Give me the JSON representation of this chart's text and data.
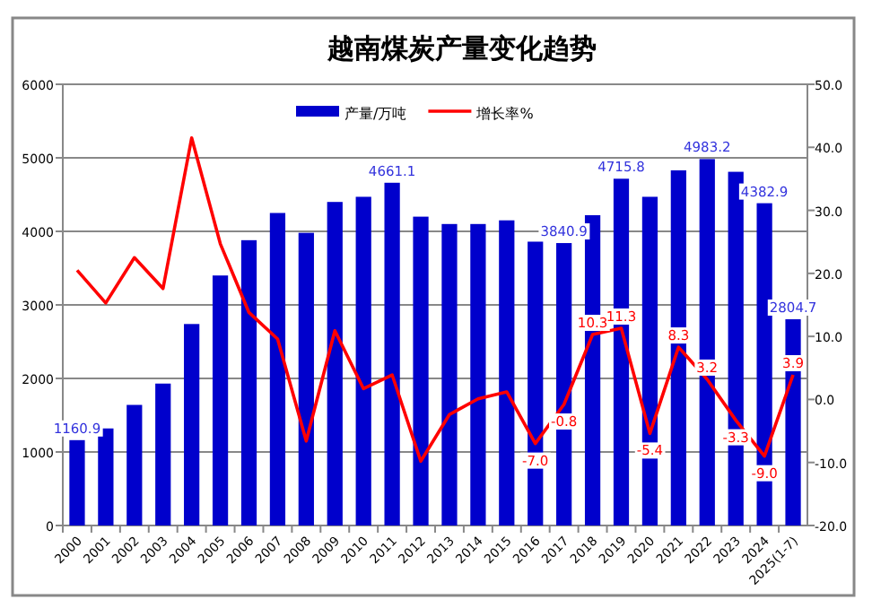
{
  "chart_data": {
    "type": "bar",
    "title": "越南煤炭产量变化趋势",
    "categories": [
      "2000",
      "2001",
      "2002",
      "2003",
      "2004",
      "2005",
      "2006",
      "2007",
      "2008",
      "2009",
      "2010",
      "2011",
      "2012",
      "2013",
      "2014",
      "2015",
      "2016",
      "2017",
      "2018",
      "2019",
      "2020",
      "2021",
      "2022",
      "2023",
      "2024",
      "2025(1-7)"
    ],
    "series": [
      {
        "name": "产量/万吨",
        "color": "#0000cc",
        "values": [
          1160.9,
          1320,
          1640,
          1930,
          2740,
          3400,
          3880,
          4250,
          3980,
          4400,
          4470,
          4661.1,
          4200,
          4100,
          4100,
          4150,
          3860,
          3840.9,
          4220,
          4715.8,
          4470,
          4830,
          4983.2,
          4810,
          4382.9,
          2804.7
        ],
        "value_labels": [
          "1160.9",
          null,
          null,
          null,
          null,
          null,
          null,
          null,
          null,
          null,
          null,
          "4661.1",
          null,
          null,
          null,
          null,
          null,
          "3840.9",
          null,
          "4715.8",
          null,
          null,
          "4983.2",
          null,
          "4382.9",
          "2804.7"
        ]
      },
      {
        "name": "增长率%",
        "type": "line",
        "axis": "y2",
        "color": "#ff0000",
        "values": [
          20.5,
          15.3,
          22.5,
          17.6,
          41.5,
          24.7,
          13.8,
          9.6,
          -6.6,
          10.9,
          1.7,
          3.9,
          -9.8,
          -2.4,
          0.1,
          1.2,
          -7.0,
          -0.8,
          10.3,
          11.3,
          -5.4,
          8.3,
          3.2,
          -3.3,
          -9.0,
          3.9
        ],
        "value_labels": [
          null,
          null,
          null,
          null,
          null,
          null,
          null,
          null,
          null,
          null,
          null,
          null,
          null,
          null,
          null,
          null,
          "-7.0",
          "-0.8",
          "10.3",
          "11.3",
          "-5.4",
          "8.3",
          "3.2",
          "-3.3",
          "-9.0",
          "3.9"
        ]
      }
    ],
    "ylim": [
      0,
      6000
    ],
    "yticks": [
      0,
      1000,
      2000,
      3000,
      4000,
      5000,
      6000
    ],
    "y2lim": [
      -20,
      50
    ],
    "y2ticks": [
      {
        "value": -20,
        "label": "-20.0"
      },
      {
        "value": -10,
        "label": "-10.0"
      },
      {
        "value": 0,
        "label": "0.0"
      },
      {
        "value": 10,
        "label": "10.0"
      },
      {
        "value": 20,
        "label": "20.0"
      },
      {
        "value": 30,
        "label": "30.0"
      },
      {
        "value": 40,
        "label": "40.0"
      },
      {
        "value": 50,
        "label": "50.0"
      }
    ],
    "grid": "y",
    "legend": "top",
    "marker": "none",
    "line_style": "solid"
  }
}
